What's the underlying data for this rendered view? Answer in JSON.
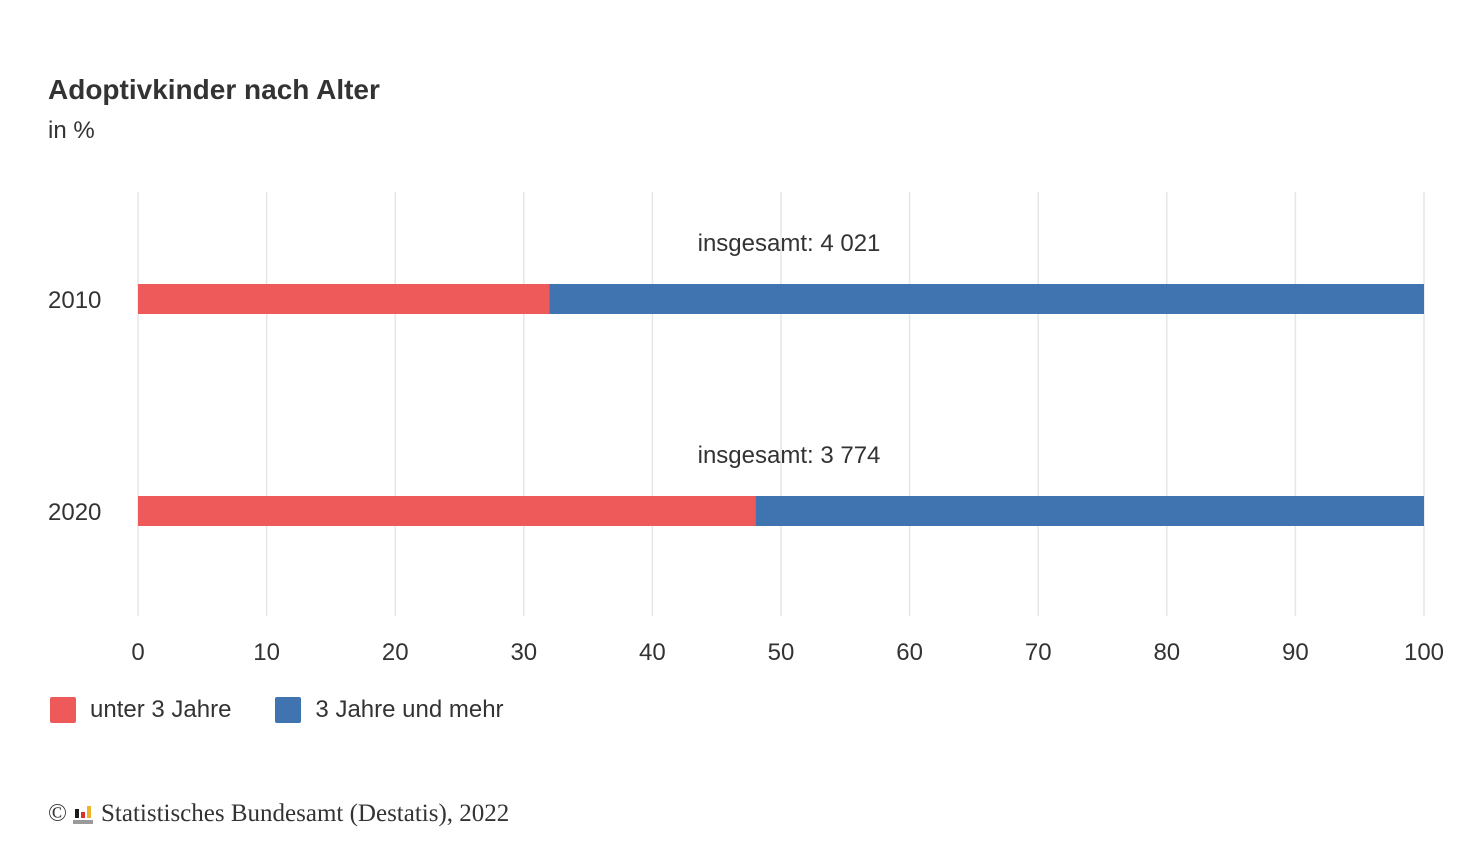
{
  "chart_data": {
    "type": "bar",
    "orientation": "horizontal",
    "stacked": true,
    "title": "Adoptivkinder nach Alter",
    "subtitle": "in %",
    "categories": [
      "2010",
      "2020"
    ],
    "annotations": [
      "insgesamt: 4 021",
      "insgesamt: 3 774"
    ],
    "series": [
      {
        "name": "unter 3 Jahre",
        "color": "#ee5a5a",
        "values": [
          32,
          48
        ]
      },
      {
        "name": "3 Jahre und mehr",
        "color": "#3f74b0",
        "values": [
          68,
          52
        ]
      }
    ],
    "xlim": [
      0,
      100
    ],
    "xticks": [
      "0",
      "10",
      "20",
      "30",
      "40",
      "50",
      "60",
      "70",
      "80",
      "90",
      "100"
    ],
    "grid": true,
    "legend": "bottom-left"
  },
  "credit": {
    "copyright": "©",
    "text": "Statistisches Bundesamt (Destatis), 2022"
  }
}
